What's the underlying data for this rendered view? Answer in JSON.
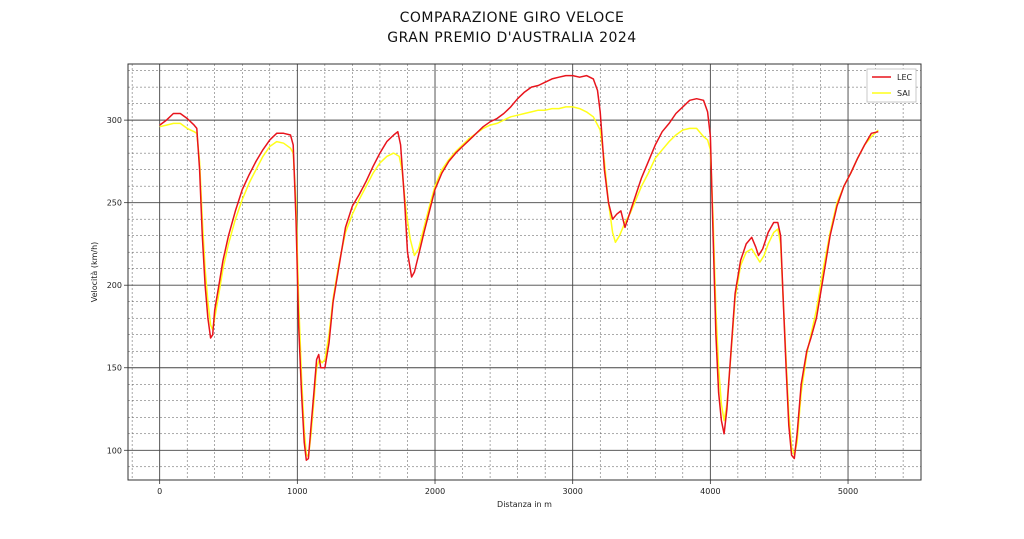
{
  "chart_data": {
    "type": "line",
    "title_lines": [
      "COMPARAZIONE GIRO VELOCE",
      "GRAN PREMIO D'AUSTRALIA 2024"
    ],
    "xlabel": "Distanza in m",
    "ylabel": "Velocità (km/h)",
    "xlim": [
      -230,
      5530
    ],
    "ylim": [
      82,
      334
    ],
    "x_ticks": [
      0,
      1000,
      2000,
      3000,
      4000,
      5000
    ],
    "y_ticks": [
      100,
      150,
      200,
      250,
      300
    ],
    "grid": true,
    "legend_position": "top-right",
    "series": [
      {
        "name": "LEC",
        "color": "#e8141c",
        "points": [
          [
            0,
            297
          ],
          [
            50,
            300
          ],
          [
            100,
            304
          ],
          [
            150,
            304
          ],
          [
            200,
            301
          ],
          [
            250,
            297
          ],
          [
            270,
            295
          ],
          [
            290,
            270
          ],
          [
            310,
            230
          ],
          [
            330,
            200
          ],
          [
            350,
            180
          ],
          [
            370,
            168
          ],
          [
            385,
            170
          ],
          [
            400,
            185
          ],
          [
            430,
            200
          ],
          [
            460,
            215
          ],
          [
            500,
            230
          ],
          [
            550,
            245
          ],
          [
            600,
            258
          ],
          [
            650,
            267
          ],
          [
            700,
            275
          ],
          [
            750,
            282
          ],
          [
            800,
            288
          ],
          [
            850,
            292
          ],
          [
            900,
            292
          ],
          [
            950,
            291
          ],
          [
            970,
            285
          ],
          [
            990,
            240
          ],
          [
            1010,
            175
          ],
          [
            1030,
            135
          ],
          [
            1050,
            105
          ],
          [
            1065,
            94
          ],
          [
            1080,
            95
          ],
          [
            1100,
            115
          ],
          [
            1120,
            135
          ],
          [
            1140,
            155
          ],
          [
            1155,
            158
          ],
          [
            1170,
            150
          ],
          [
            1200,
            150
          ],
          [
            1230,
            165
          ],
          [
            1260,
            190
          ],
          [
            1300,
            210
          ],
          [
            1350,
            235
          ],
          [
            1400,
            248
          ],
          [
            1450,
            255
          ],
          [
            1500,
            263
          ],
          [
            1550,
            272
          ],
          [
            1600,
            280
          ],
          [
            1650,
            287
          ],
          [
            1700,
            291
          ],
          [
            1730,
            293
          ],
          [
            1750,
            285
          ],
          [
            1780,
            250
          ],
          [
            1800,
            220
          ],
          [
            1830,
            205
          ],
          [
            1850,
            208
          ],
          [
            1880,
            218
          ],
          [
            1920,
            232
          ],
          [
            1960,
            245
          ],
          [
            2000,
            258
          ],
          [
            2050,
            268
          ],
          [
            2100,
            275
          ],
          [
            2150,
            280
          ],
          [
            2200,
            284
          ],
          [
            2250,
            288
          ],
          [
            2300,
            292
          ],
          [
            2350,
            296
          ],
          [
            2400,
            299
          ],
          [
            2450,
            301
          ],
          [
            2500,
            304
          ],
          [
            2550,
            308
          ],
          [
            2600,
            313
          ],
          [
            2650,
            317
          ],
          [
            2700,
            320
          ],
          [
            2750,
            321
          ],
          [
            2800,
            323
          ],
          [
            2850,
            325
          ],
          [
            2900,
            326
          ],
          [
            2950,
            327
          ],
          [
            3000,
            327
          ],
          [
            3050,
            326
          ],
          [
            3100,
            327
          ],
          [
            3150,
            325
          ],
          [
            3180,
            318
          ],
          [
            3200,
            305
          ],
          [
            3230,
            270
          ],
          [
            3260,
            250
          ],
          [
            3290,
            240
          ],
          [
            3320,
            243
          ],
          [
            3350,
            245
          ],
          [
            3380,
            235
          ],
          [
            3420,
            245
          ],
          [
            3460,
            255
          ],
          [
            3500,
            265
          ],
          [
            3550,
            275
          ],
          [
            3600,
            285
          ],
          [
            3650,
            293
          ],
          [
            3700,
            298
          ],
          [
            3750,
            304
          ],
          [
            3800,
            308
          ],
          [
            3850,
            312
          ],
          [
            3900,
            313
          ],
          [
            3950,
            312
          ],
          [
            3980,
            305
          ],
          [
            4000,
            290
          ],
          [
            4020,
            230
          ],
          [
            4040,
            170
          ],
          [
            4060,
            135
          ],
          [
            4080,
            118
          ],
          [
            4100,
            110
          ],
          [
            4120,
            125
          ],
          [
            4150,
            160
          ],
          [
            4180,
            195
          ],
          [
            4220,
            215
          ],
          [
            4260,
            225
          ],
          [
            4300,
            229
          ],
          [
            4330,
            223
          ],
          [
            4350,
            218
          ],
          [
            4380,
            222
          ],
          [
            4420,
            232
          ],
          [
            4460,
            238
          ],
          [
            4490,
            238
          ],
          [
            4510,
            230
          ],
          [
            4530,
            190
          ],
          [
            4550,
            150
          ],
          [
            4570,
            115
          ],
          [
            4590,
            97
          ],
          [
            4610,
            95
          ],
          [
            4630,
            110
          ],
          [
            4660,
            140
          ],
          [
            4700,
            160
          ],
          [
            4730,
            168
          ],
          [
            4770,
            180
          ],
          [
            4820,
            205
          ],
          [
            4870,
            230
          ],
          [
            4920,
            248
          ],
          [
            4970,
            260
          ],
          [
            5020,
            268
          ],
          [
            5070,
            277
          ],
          [
            5120,
            285
          ],
          [
            5170,
            292
          ],
          [
            5220,
            293
          ]
        ]
      },
      {
        "name": "SAI",
        "color": "#ffff1a",
        "points": [
          [
            0,
            296
          ],
          [
            50,
            297
          ],
          [
            100,
            298
          ],
          [
            150,
            298
          ],
          [
            200,
            295
          ],
          [
            250,
            293
          ],
          [
            270,
            292
          ],
          [
            290,
            275
          ],
          [
            310,
            240
          ],
          [
            330,
            210
          ],
          [
            350,
            190
          ],
          [
            370,
            176
          ],
          [
            385,
            173
          ],
          [
            400,
            180
          ],
          [
            430,
            195
          ],
          [
            460,
            210
          ],
          [
            500,
            225
          ],
          [
            550,
            240
          ],
          [
            600,
            252
          ],
          [
            650,
            262
          ],
          [
            700,
            270
          ],
          [
            750,
            278
          ],
          [
            800,
            284
          ],
          [
            850,
            287
          ],
          [
            900,
            286
          ],
          [
            950,
            283
          ],
          [
            970,
            280
          ],
          [
            990,
            250
          ],
          [
            1010,
            190
          ],
          [
            1030,
            145
          ],
          [
            1050,
            112
          ],
          [
            1065,
            98
          ],
          [
            1080,
            96
          ],
          [
            1100,
            110
          ],
          [
            1120,
            130
          ],
          [
            1140,
            150
          ],
          [
            1160,
            155
          ],
          [
            1180,
            153
          ],
          [
            1200,
            155
          ],
          [
            1230,
            170
          ],
          [
            1260,
            192
          ],
          [
            1300,
            212
          ],
          [
            1350,
            232
          ],
          [
            1400,
            243
          ],
          [
            1450,
            252
          ],
          [
            1500,
            260
          ],
          [
            1550,
            268
          ],
          [
            1600,
            274
          ],
          [
            1650,
            278
          ],
          [
            1700,
            280
          ],
          [
            1740,
            278
          ],
          [
            1760,
            270
          ],
          [
            1790,
            245
          ],
          [
            1820,
            228
          ],
          [
            1850,
            218
          ],
          [
            1880,
            222
          ],
          [
            1920,
            235
          ],
          [
            1960,
            248
          ],
          [
            2000,
            260
          ],
          [
            2050,
            270
          ],
          [
            2100,
            276
          ],
          [
            2150,
            281
          ],
          [
            2200,
            285
          ],
          [
            2250,
            289
          ],
          [
            2300,
            292
          ],
          [
            2350,
            295
          ],
          [
            2400,
            297
          ],
          [
            2450,
            298
          ],
          [
            2500,
            300
          ],
          [
            2550,
            302
          ],
          [
            2600,
            303
          ],
          [
            2650,
            304
          ],
          [
            2700,
            305
          ],
          [
            2750,
            306
          ],
          [
            2800,
            306
          ],
          [
            2850,
            307
          ],
          [
            2900,
            307
          ],
          [
            2950,
            308
          ],
          [
            3000,
            308
          ],
          [
            3050,
            307
          ],
          [
            3100,
            305
          ],
          [
            3150,
            302
          ],
          [
            3200,
            294
          ],
          [
            3230,
            275
          ],
          [
            3260,
            250
          ],
          [
            3290,
            232
          ],
          [
            3310,
            226
          ],
          [
            3340,
            230
          ],
          [
            3380,
            238
          ],
          [
            3420,
            244
          ],
          [
            3460,
            252
          ],
          [
            3500,
            260
          ],
          [
            3550,
            268
          ],
          [
            3600,
            277
          ],
          [
            3650,
            282
          ],
          [
            3700,
            287
          ],
          [
            3750,
            291
          ],
          [
            3800,
            294
          ],
          [
            3850,
            295
          ],
          [
            3900,
            295
          ],
          [
            3950,
            290
          ],
          [
            3980,
            288
          ],
          [
            4000,
            282
          ],
          [
            4020,
            240
          ],
          [
            4040,
            185
          ],
          [
            4060,
            150
          ],
          [
            4080,
            128
          ],
          [
            4100,
            118
          ],
          [
            4120,
            128
          ],
          [
            4150,
            158
          ],
          [
            4180,
            192
          ],
          [
            4220,
            212
          ],
          [
            4260,
            220
          ],
          [
            4300,
            222
          ],
          [
            4330,
            218
          ],
          [
            4360,
            214
          ],
          [
            4390,
            218
          ],
          [
            4420,
            225
          ],
          [
            4460,
            232
          ],
          [
            4490,
            234
          ],
          [
            4510,
            225
          ],
          [
            4530,
            190
          ],
          [
            4550,
            155
          ],
          [
            4570,
            122
          ],
          [
            4590,
            102
          ],
          [
            4610,
            97
          ],
          [
            4630,
            105
          ],
          [
            4660,
            135
          ],
          [
            4700,
            158
          ],
          [
            4730,
            170
          ],
          [
            4770,
            185
          ],
          [
            4820,
            210
          ],
          [
            4870,
            232
          ],
          [
            4920,
            250
          ],
          [
            4970,
            260
          ],
          [
            5020,
            268
          ],
          [
            5070,
            277
          ],
          [
            5120,
            285
          ],
          [
            5170,
            290
          ],
          [
            5220,
            294
          ]
        ]
      }
    ]
  }
}
